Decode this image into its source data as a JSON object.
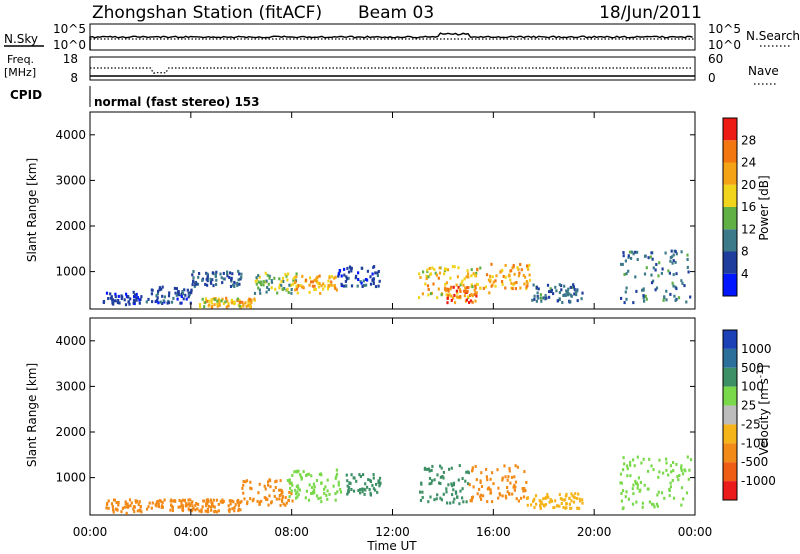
{
  "header": {
    "station": "Zhongshan Station (fitACF)",
    "beam": "Beam 03",
    "date": "18/Jun/2011"
  },
  "panels": {
    "nsky": {
      "label": "N.Sky",
      "ticks": [
        "10^5",
        "10^0"
      ]
    },
    "nsearch": {
      "label": "N.Search",
      "ticks": [
        "10^5",
        "10^0"
      ]
    },
    "freq": {
      "label_lines": [
        "Freq.",
        "[MHz]"
      ],
      "ticks": [
        "18",
        "8"
      ]
    },
    "nave": {
      "label": "Nave",
      "ticks": [
        "60",
        "0"
      ]
    },
    "cpid": {
      "label": "CPID",
      "value": "normal (fast stereo) 153"
    }
  },
  "chart_data": [
    {
      "type": "heatmap",
      "name": "power",
      "ylabel": "Slant Range [km]",
      "yticks": [
        "1000",
        "2000",
        "3000",
        "4000"
      ],
      "ylim": [
        180,
        4500
      ],
      "colorbar": {
        "label": "Power [dB]",
        "ticks": [
          "4",
          "8",
          "12",
          "16",
          "20",
          "24",
          "28"
        ],
        "colors": [
          "#0016ff",
          "#1f3d9c",
          "#3c7a89",
          "#61b046",
          "#f1d41c",
          "#f5a316",
          "#f2770f",
          "#ee1b14"
        ]
      },
      "clusters": [
        {
          "t0": 0.5,
          "t1": 2.0,
          "r0": 280,
          "r1": 580,
          "value": 5
        },
        {
          "t0": 2.2,
          "t1": 4.0,
          "r0": 330,
          "r1": 700,
          "value": 6
        },
        {
          "t0": 4.0,
          "t1": 6.0,
          "r0": 700,
          "r1": 1050,
          "value": 8
        },
        {
          "t0": 4.3,
          "t1": 6.5,
          "r0": 250,
          "r1": 450,
          "value": 20
        },
        {
          "t0": 6.5,
          "t1": 8.2,
          "r0": 550,
          "r1": 1000,
          "value": 14
        },
        {
          "t0": 8.0,
          "t1": 9.8,
          "r0": 550,
          "r1": 950,
          "value": 22
        },
        {
          "t0": 9.8,
          "t1": 11.5,
          "r0": 700,
          "r1": 1150,
          "value": 6
        },
        {
          "t0": 13.0,
          "t1": 15.8,
          "r0": 450,
          "r1": 1150,
          "value": 20
        },
        {
          "t0": 14.0,
          "t1": 15.3,
          "r0": 350,
          "r1": 700,
          "value": 27
        },
        {
          "t0": 15.8,
          "t1": 17.5,
          "r0": 650,
          "r1": 1200,
          "value": 22
        },
        {
          "t0": 17.5,
          "t1": 19.5,
          "r0": 350,
          "r1": 750,
          "value": 9
        },
        {
          "t0": 21.0,
          "t1": 23.8,
          "r0": 350,
          "r1": 1500,
          "value": 9
        }
      ]
    },
    {
      "type": "heatmap",
      "name": "velocity",
      "ylabel": "Slant Range [km]",
      "yticks": [
        "1000",
        "2000",
        "3000",
        "4000"
      ],
      "ylim": [
        180,
        4500
      ],
      "colorbar": {
        "label": "Velocity [m s",
        "label_sup": "-1",
        "label_end": "]",
        "ticks": [
          "1000",
          "500",
          "100",
          "25",
          "-25",
          "-100",
          "-500",
          "-1000"
        ],
        "colors": [
          "#1c41b7",
          "#2d6f9b",
          "#3d8f65",
          "#7ad94a",
          "#bdbdbd",
          "#f5b41a",
          "#f28a18",
          "#ef5c14",
          "#ec1b1b"
        ]
      },
      "clusters": [
        {
          "t0": 0.5,
          "t1": 2.0,
          "r0": 250,
          "r1": 550,
          "value": -200
        },
        {
          "t0": 2.2,
          "t1": 6.0,
          "r0": 280,
          "r1": 550,
          "value": -250
        },
        {
          "t0": 6.0,
          "t1": 8.0,
          "r0": 400,
          "r1": 1000,
          "value": -200
        },
        {
          "t0": 7.8,
          "t1": 10.0,
          "r0": 500,
          "r1": 1200,
          "value": 50
        },
        {
          "t0": 10.0,
          "t1": 11.5,
          "r0": 650,
          "r1": 1100,
          "value": 150
        },
        {
          "t0": 13.0,
          "t1": 15.0,
          "r0": 450,
          "r1": 1300,
          "value": 300
        },
        {
          "t0": 15.0,
          "t1": 17.3,
          "r0": 500,
          "r1": 1300,
          "value": -300
        },
        {
          "t0": 17.3,
          "t1": 19.5,
          "r0": 350,
          "r1": 700,
          "value": -60
        },
        {
          "t0": 21.0,
          "t1": 23.8,
          "r0": 350,
          "r1": 1500,
          "value": 60
        }
      ]
    }
  ],
  "time_axis": {
    "label": "Time UT",
    "ticks": [
      "00:00",
      "04:00",
      "08:00",
      "12:00",
      "16:00",
      "20:00",
      "00:00"
    ],
    "range_hours": [
      0,
      24
    ]
  }
}
